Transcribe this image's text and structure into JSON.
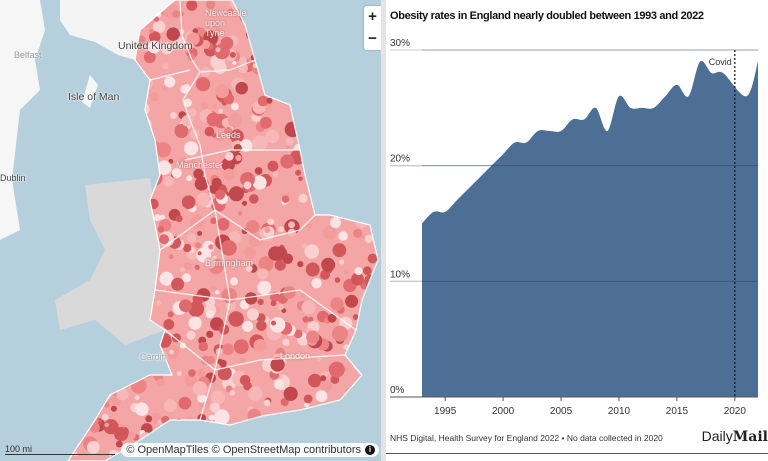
{
  "map": {
    "labels": {
      "newcastle": "Newcastle upon Tyne",
      "uk": "United Kingdom",
      "belfast": "Belfast",
      "isle_of_man": "Isle of Man",
      "dublin": "Dublin",
      "leeds": "Leeds",
      "manchester": "Manchester",
      "birmingham": "Birmingham",
      "cardiff": "Cardiff",
      "london": "London"
    },
    "zoom_in": "+",
    "zoom_out": "−",
    "scale": "100 mi",
    "attribution": "© OpenMapTiles © OpenStreetMap contributors",
    "info_icon": "i",
    "colors": {
      "sea": "#b5d0dc",
      "choropleth_low": "#fbe0e0",
      "choropleth_high": "#c8474a",
      "wales": "#d9d9d9"
    }
  },
  "chart": {
    "source": "NHS Digital, Health Survey for England 2022 • No data collected in 2020",
    "logo": {
      "daily": "Daily",
      "mail": "Mail"
    }
  },
  "chart_data": {
    "type": "area",
    "title": "Obesity rates in England nearly doubled between 1993 and 2022",
    "xlabel": "",
    "ylabel": "",
    "x": [
      1993,
      1994,
      1995,
      1996,
      1997,
      1998,
      1999,
      2000,
      2001,
      2002,
      2003,
      2004,
      2005,
      2006,
      2007,
      2008,
      2009,
      2010,
      2011,
      2012,
      2013,
      2014,
      2015,
      2016,
      2017,
      2018,
      2019,
      2021,
      2022
    ],
    "values": [
      15,
      16,
      16,
      17,
      18,
      19,
      20,
      21,
      22,
      22,
      23,
      23,
      23,
      24,
      24,
      25,
      23,
      26,
      25,
      25,
      25,
      26,
      27,
      26,
      29,
      28,
      28,
      26,
      29
    ],
    "ylim": [
      0,
      30
    ],
    "xlim": [
      1993,
      2022
    ],
    "yticks": [
      0,
      10,
      20,
      30
    ],
    "ytick_labels": [
      "0%",
      "10%",
      "20%",
      "30%"
    ],
    "xticks": [
      1995,
      2000,
      2005,
      2010,
      2015,
      2020
    ],
    "xtick_labels": [
      "1995",
      "2000",
      "2005",
      "2010",
      "2015",
      "2020"
    ],
    "annotation": {
      "x": 2020,
      "label": "Covid"
    },
    "grid": true,
    "color": "#4d6f96"
  }
}
